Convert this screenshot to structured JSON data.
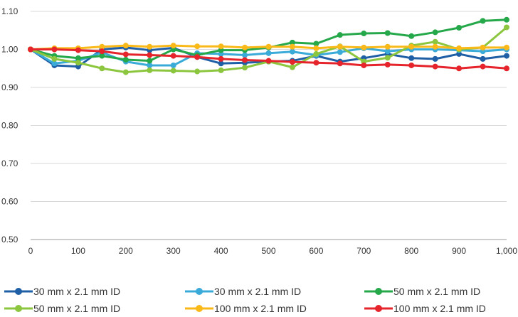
{
  "chart_data": {
    "type": "line",
    "title": "",
    "xlabel": "",
    "ylabel": "",
    "xlim": [
      0,
      1000
    ],
    "ylim": [
      0.5,
      1.1
    ],
    "x_ticks": [
      0,
      100,
      200,
      300,
      400,
      500,
      600,
      700,
      800,
      900,
      1000
    ],
    "x_tick_labels": [
      "0",
      "100",
      "200",
      "300",
      "400",
      "500",
      "600",
      "700",
      "800",
      "900",
      "1,000"
    ],
    "y_ticks": [
      0.5,
      0.6,
      0.7,
      0.8,
      0.9,
      1.0,
      1.1
    ],
    "y_tick_labels": [
      "0.50",
      "0.60",
      "0.70",
      "0.80",
      "0.90",
      "1.00",
      "1.10"
    ],
    "grid": "horizontal",
    "legend_position": "bottom",
    "x": [
      0,
      50,
      100,
      150,
      200,
      250,
      300,
      350,
      400,
      450,
      500,
      550,
      600,
      650,
      700,
      750,
      800,
      850,
      900,
      950,
      1000
    ],
    "series": [
      {
        "name": "30 mm x 2.1 mm ID",
        "color": "#1f5fa6",
        "values": [
          1.0,
          0.958,
          0.955,
          1.0,
          1.005,
          0.998,
          1.004,
          0.98,
          0.963,
          0.965,
          0.968,
          0.97,
          0.983,
          0.968,
          0.977,
          0.988,
          0.977,
          0.975,
          0.988,
          0.975,
          0.983
        ]
      },
      {
        "name": "30 mm x 2.1 mm ID",
        "color": "#3aabd9",
        "values": [
          1.0,
          0.963,
          0.97,
          0.992,
          0.968,
          0.958,
          0.958,
          0.99,
          0.988,
          0.985,
          0.99,
          0.994,
          0.985,
          0.993,
          1.003,
          0.995,
          1.0,
          1.0,
          0.998,
          0.995,
          1.0
        ]
      },
      {
        "name": "50 mm x 2.1 mm ID",
        "color": "#25a84a",
        "values": [
          1.0,
          0.983,
          0.977,
          0.983,
          0.973,
          0.97,
          1.0,
          0.985,
          0.998,
          0.998,
          1.005,
          1.018,
          1.015,
          1.038,
          1.042,
          1.043,
          1.035,
          1.045,
          1.057,
          1.075,
          1.078
        ]
      },
      {
        "name": "50 mm x 2.1 mm ID",
        "color": "#8cc63f",
        "values": [
          1.0,
          0.975,
          0.965,
          0.95,
          0.94,
          0.945,
          0.944,
          0.942,
          0.945,
          0.952,
          0.968,
          0.953,
          0.988,
          1.008,
          0.968,
          0.978,
          1.01,
          1.02,
          1.0,
          1.005,
          1.058
        ]
      },
      {
        "name": "100 mm x 2.1 mm ID",
        "color": "#f9b918",
        "values": [
          1.0,
          1.003,
          1.003,
          1.007,
          1.01,
          1.007,
          1.01,
          1.008,
          1.008,
          1.005,
          1.007,
          1.007,
          1.003,
          1.007,
          1.005,
          1.007,
          1.007,
          1.007,
          1.003,
          1.005,
          1.005
        ]
      },
      {
        "name": "100 mm x 2.1 mm ID",
        "color": "#e5242b",
        "values": [
          1.0,
          1.0,
          0.998,
          0.995,
          0.987,
          0.985,
          0.983,
          0.98,
          0.975,
          0.972,
          0.97,
          0.967,
          0.965,
          0.963,
          0.958,
          0.96,
          0.958,
          0.955,
          0.95,
          0.955,
          0.95
        ]
      }
    ]
  }
}
